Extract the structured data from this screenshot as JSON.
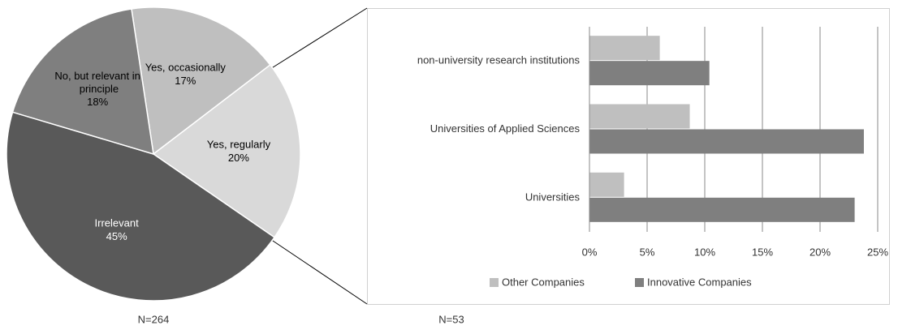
{
  "chart_data": [
    {
      "type": "pie",
      "categories": [
        "Yes, occasionally",
        "Yes, regularly",
        "Irrelevant",
        "No, but relevant in principle"
      ],
      "values": [
        17,
        20,
        45,
        18
      ],
      "value_labels": [
        "17%",
        "20%",
        "45%",
        "18%"
      ],
      "colors": [
        "#bfbfbf",
        "#d9d9d9",
        "#595959",
        "#7f7f7f"
      ],
      "note": "N=264"
    },
    {
      "type": "bar",
      "orientation": "horizontal",
      "categories": [
        "non-university research institutions",
        "Universities of Applied Sciences",
        "Universities"
      ],
      "series": [
        {
          "name": "Other Companies",
          "color": "#bfbfbf",
          "values": [
            6.1,
            8.7,
            3.0
          ]
        },
        {
          "name": "Innovative Companies",
          "color": "#7f7f7f",
          "values": [
            10.4,
            23.8,
            23.0
          ]
        }
      ],
      "xlim": [
        0,
        25
      ],
      "xticks": [
        {
          "value": 0,
          "label": "0%"
        },
        {
          "value": 5,
          "label": "5%"
        },
        {
          "value": 10,
          "label": "10%"
        },
        {
          "value": 15,
          "label": "15%"
        },
        {
          "value": 20,
          "label": "20%"
        },
        {
          "value": 25,
          "label": "25%"
        }
      ],
      "grid": true,
      "legend": "bottom",
      "note": "N=53"
    }
  ]
}
